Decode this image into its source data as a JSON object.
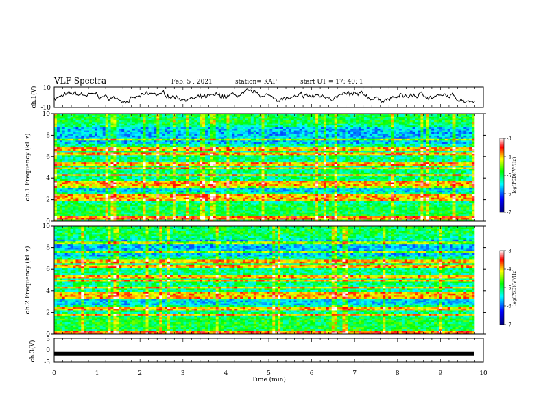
{
  "header": {
    "title": "VLF Spectra",
    "date": "Feb. 5 , 2021",
    "station": "station= KAP",
    "start": "start UT = 17: 40: 1"
  },
  "chart_data": [
    {
      "type": "line",
      "ylabel": "ch.1(V)",
      "ylim": [
        -10,
        10
      ],
      "yticks": [
        "10",
        "-10"
      ],
      "xlim": [
        0,
        10
      ],
      "note": "noisy waveform around 0 V spanning 0 to ~9.8 min"
    },
    {
      "type": "heatmap",
      "ylabel": "ch.1 Frequency (kHz)",
      "ylim": [
        0,
        10
      ],
      "yticks": [
        "0",
        "2",
        "4",
        "6",
        "8",
        "10"
      ],
      "xlim": [
        0,
        10
      ],
      "colorbar": {
        "label": "log(PSD)(V²/Hz)",
        "range": [
          -7,
          -3
        ],
        "ticks": [
          "-3",
          "-4",
          "-5",
          "-6",
          "-7"
        ]
      },
      "bands_khz": [
        0.3,
        2.0,
        2.3,
        3.3,
        3.6,
        4.3,
        4.9,
        5.3,
        6.3,
        6.7,
        7.6
      ]
    },
    {
      "type": "heatmap",
      "ylabel": "ch.2 Frequency (kHz)",
      "ylim": [
        0,
        10
      ],
      "yticks": [
        "0",
        "2",
        "4",
        "6",
        "8",
        "10"
      ],
      "xlim": [
        0,
        10
      ],
      "colorbar": {
        "label": "log(PSD)(V²/Hz)",
        "range": [
          -7,
          -3
        ],
        "ticks": [
          "-3",
          "-4",
          "-5",
          "-6",
          "-7"
        ]
      },
      "bands_khz": [
        0.2,
        1.8,
        2.3,
        3.4,
        3.7,
        4.3,
        4.9,
        5.3,
        6.3,
        6.7,
        7.6,
        8.4
      ]
    },
    {
      "type": "line",
      "ylabel": "ch.3(V)",
      "ylim": [
        -5,
        5
      ],
      "yticks": [
        "5",
        "0",
        "-5"
      ],
      "xlim": [
        0,
        10
      ],
      "note": "thick flat trace near -1.5 V from 0 to ~9.8 min"
    }
  ],
  "xaxis": {
    "label": "Time (min)",
    "ticks": [
      "0",
      "1",
      "2",
      "3",
      "4",
      "5",
      "6",
      "7",
      "8",
      "9",
      "10"
    ]
  },
  "colors": {
    "background": "#ffffff",
    "axes": "#000000",
    "colormap": [
      "#00007f",
      "#0000ff",
      "#00ffff",
      "#00ff00",
      "#ffff00",
      "#ff0000",
      "#ffffff"
    ]
  }
}
